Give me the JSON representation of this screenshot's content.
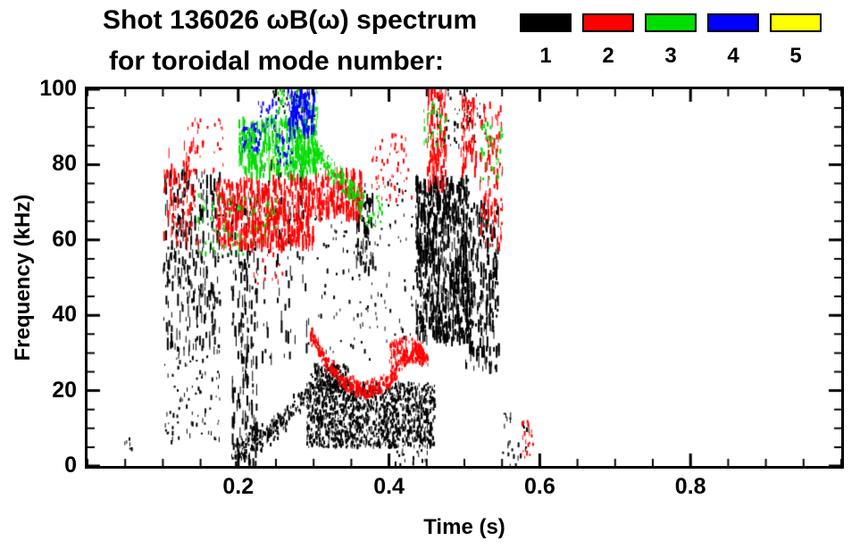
{
  "title": {
    "line1": "Shot 136026 ωB(ω) spectrum",
    "line2": "for toroidal mode number:"
  },
  "legend": {
    "items": [
      {
        "label": "1",
        "color": "#000000"
      },
      {
        "label": "2",
        "color": "#ff0000"
      },
      {
        "label": "3",
        "color": "#00dd00"
      },
      {
        "label": "4",
        "color": "#0000ff"
      },
      {
        "label": "5",
        "color": "#ffff00"
      }
    ]
  },
  "chart_data": {
    "type": "scatter",
    "title": "Shot 136026 ωB(ω) spectrum for toroidal mode number",
    "xlabel": "Time (s)",
    "ylabel": "Frequency (kHz)",
    "xlim": [
      0,
      1.0
    ],
    "ylim": [
      0,
      100
    ],
    "grid": false,
    "legend_position": "top-right",
    "xticks": {
      "major": [
        0.2,
        0.4,
        0.6,
        0.8
      ],
      "minor_step": 0.05,
      "labels": [
        "0.2",
        "0.4",
        "0.6",
        "0.8"
      ]
    },
    "yticks": {
      "major": [
        0,
        20,
        40,
        60,
        80,
        100
      ],
      "minor_step": 5,
      "labels": [
        "0",
        "20",
        "40",
        "60",
        "80",
        "100"
      ]
    },
    "encoding": "clusters approximate dense regions of mode activity; t in seconds, f in kHz",
    "series": [
      {
        "name": "n=1",
        "color": "#000000",
        "clusters": [
          {
            "t": [
              0.045,
              0.06
            ],
            "f": [
              4,
              8
            ],
            "n": 6
          },
          {
            "t": [
              0.1,
              0.175
            ],
            "f": [
              30,
              78
            ],
            "n": 300,
            "tall": true
          },
          {
            "t": [
              0.1,
              0.175
            ],
            "f": [
              6,
              30
            ],
            "n": 80
          },
          {
            "t": [
              0.19,
              0.225
            ],
            "f": [
              0,
              72
            ],
            "n": 190,
            "tall": true
          },
          {
            "t": [
              0.23,
              0.295
            ],
            "f": [
              28,
              80
            ],
            "n": 90,
            "tall": true
          },
          {
            "path": [
              [
                0.195,
                4
              ],
              [
                0.24,
                9
              ],
              [
                0.265,
                13
              ],
              [
                0.3,
                22
              ]
            ],
            "n": 240,
            "jitter": 2.4
          },
          {
            "t": [
              0.29,
              0.46
            ],
            "f": [
              5,
              22
            ],
            "n": 1150
          },
          {
            "t": [
              0.3,
              0.345
            ],
            "f": [
              20,
              27
            ],
            "n": 140
          },
          {
            "t": [
              0.3,
              0.45
            ],
            "f": [
              28,
              75
            ],
            "n": 150
          },
          {
            "t": [
              0.355,
              0.378
            ],
            "f": [
              52,
              72
            ],
            "n": 70,
            "tall": true
          },
          {
            "t": [
              0.435,
              0.505
            ],
            "f": [
              33,
              76
            ],
            "n": 760,
            "tall": true
          },
          {
            "t": [
              0.5,
              0.545
            ],
            "f": [
              25,
              70
            ],
            "n": 250,
            "tall": true
          },
          {
            "t": [
              0.245,
              0.3
            ],
            "f": [
              86,
              100
            ],
            "n": 60
          },
          {
            "t": [
              0.455,
              0.52
            ],
            "f": [
              84,
              100
            ],
            "n": 60
          },
          {
            "t": [
              0.55,
              0.585
            ],
            "f": [
              0,
              14
            ],
            "n": 28
          },
          {
            "t": [
              0.405,
              0.455
            ],
            "f": [
              0,
              10
            ],
            "n": 36
          },
          {
            "t": [
              0.17,
              0.19
            ],
            "f": [
              52,
              70
            ],
            "n": 24
          }
        ]
      },
      {
        "name": "n=2",
        "color": "#ff0000",
        "clusters": [
          {
            "t": [
              0.1,
              0.145
            ],
            "f": [
              58,
              86
            ],
            "n": 90,
            "tall": true
          },
          {
            "t": [
              0.13,
              0.18
            ],
            "f": [
              76,
              92
            ],
            "n": 36
          },
          {
            "t": [
              0.17,
              0.3
            ],
            "f": [
              58,
              76
            ],
            "n": 520,
            "tall": true
          },
          {
            "t": [
              0.3,
              0.365
            ],
            "f": [
              66,
              78
            ],
            "n": 180,
            "tall": true
          },
          {
            "path": [
              [
                0.295,
                35
              ],
              [
                0.315,
                28
              ],
              [
                0.34,
                22
              ],
              [
                0.365,
                20
              ],
              [
                0.39,
                21
              ],
              [
                0.415,
                27
              ],
              [
                0.435,
                31
              ],
              [
                0.452,
                28
              ]
            ],
            "n": 420,
            "jitter": 1.6
          },
          {
            "t": [
              0.4,
              0.445
            ],
            "f": [
              27,
              34
            ],
            "n": 120
          },
          {
            "t": [
              0.375,
              0.43
            ],
            "f": [
              70,
              88
            ],
            "n": 60
          },
          {
            "t": [
              0.45,
              0.475
            ],
            "f": [
              74,
              100
            ],
            "n": 110,
            "tall": true
          },
          {
            "t": [
              0.495,
              0.515
            ],
            "f": [
              78,
              98
            ],
            "n": 60,
            "tall": true
          },
          {
            "t": [
              0.52,
              0.55
            ],
            "f": [
              58,
              96
            ],
            "n": 90,
            "tall": true
          },
          {
            "t": [
              0.575,
              0.59
            ],
            "f": [
              2,
              12
            ],
            "n": 20
          },
          {
            "t": [
              0.22,
              0.26
            ],
            "f": [
              48,
              60
            ],
            "n": 18
          }
        ]
      },
      {
        "name": "n=3",
        "color": "#00dd00",
        "clusters": [
          {
            "t": [
              0.145,
              0.21
            ],
            "f": [
              55,
              72
            ],
            "n": 55
          },
          {
            "t": [
              0.2,
              0.305
            ],
            "f": [
              77,
              92
            ],
            "n": 360,
            "tall": true
          },
          {
            "path": [
              [
                0.3,
                84
              ],
              [
                0.33,
                77
              ],
              [
                0.365,
                70
              ]
            ],
            "n": 150,
            "jitter": 2.2
          },
          {
            "t": [
              0.25,
              0.305
            ],
            "f": [
              92,
              100
            ],
            "n": 55
          },
          {
            "t": [
              0.445,
              0.475
            ],
            "f": [
              85,
              96
            ],
            "n": 34
          },
          {
            "t": [
              0.52,
              0.55
            ],
            "f": [
              76,
              92
            ],
            "n": 40
          },
          {
            "t": [
              0.215,
              0.25
            ],
            "f": [
              58,
              72
            ],
            "n": 26
          },
          {
            "t": [
              0.36,
              0.39
            ],
            "f": [
              63,
              72
            ],
            "n": 26
          }
        ]
      },
      {
        "name": "n=4",
        "color": "#0000ff",
        "clusters": [
          {
            "t": [
              0.205,
              0.228
            ],
            "f": [
              83,
              91
            ],
            "n": 45
          },
          {
            "t": [
              0.225,
              0.25
            ],
            "f": [
              88,
              97
            ],
            "n": 26
          },
          {
            "t": [
              0.265,
              0.3
            ],
            "f": [
              88,
              100
            ],
            "n": 120,
            "tall": true
          },
          {
            "t": [
              0.25,
              0.27
            ],
            "f": [
              80,
              88
            ],
            "n": 28
          }
        ]
      },
      {
        "name": "n=5",
        "color": "#ffff00",
        "clusters": [
          {
            "t": [
              0.243,
              0.256
            ],
            "f": [
              78,
              82
            ],
            "n": 5
          }
        ]
      }
    ]
  }
}
